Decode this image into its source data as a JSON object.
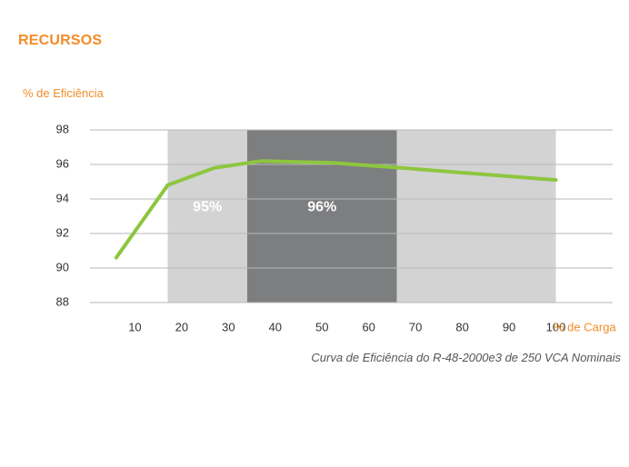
{
  "header": {
    "title": "RECURSOS"
  },
  "chart_data": {
    "type": "line",
    "title": "",
    "ylabel": "% de Eficiência",
    "xlabel": "% de Carga",
    "caption": "Curva de Eficiência do R-48-2000e3 de 250 VCA Nominais",
    "xticks": [
      10,
      20,
      30,
      40,
      50,
      60,
      70,
      80,
      90,
      100
    ],
    "yticks": [
      88,
      90,
      92,
      94,
      96,
      98
    ],
    "xlim": [
      5,
      120
    ],
    "ylim": [
      88,
      98
    ],
    "grid": true,
    "series": [
      {
        "color": "#8dc63f",
        "x": [
          6,
          17,
          27,
          37,
          52,
          67,
          100
        ],
        "y": [
          90.6,
          94.8,
          95.8,
          96.2,
          96.1,
          95.8,
          95.1
        ]
      }
    ],
    "bands": [
      {
        "x": [
          17,
          34
        ],
        "color": "#d3d3d4",
        "label": "95%"
      },
      {
        "x": [
          34,
          66
        ],
        "color": "#7d7e80",
        "label": "96%"
      },
      {
        "x": [
          66,
          100
        ],
        "color": "#d3d3d4",
        "label": ""
      }
    ]
  }
}
